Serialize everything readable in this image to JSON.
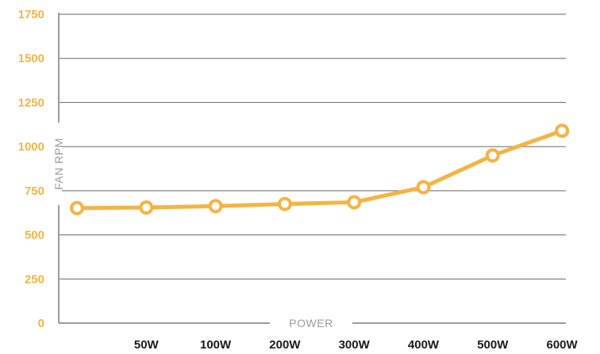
{
  "chart_data": {
    "type": "line",
    "xlabel": "POWER",
    "ylabel": "FAN RPM",
    "categories": [
      "",
      "50W",
      "100W",
      "200W",
      "300W",
      "400W",
      "500W",
      "600W"
    ],
    "series": [
      {
        "values": [
          652,
          655,
          663,
          675,
          685,
          770,
          950,
          1090
        ]
      }
    ],
    "ylim": [
      0,
      1750
    ],
    "yticks": [
      0,
      250,
      500,
      750,
      1000,
      1250,
      1500,
      1750
    ],
    "grid": true,
    "colors": {
      "line": "#f5b342",
      "tick": "#f5b342",
      "grid": "#666666",
      "axis_label": "#9a9a9a"
    }
  }
}
